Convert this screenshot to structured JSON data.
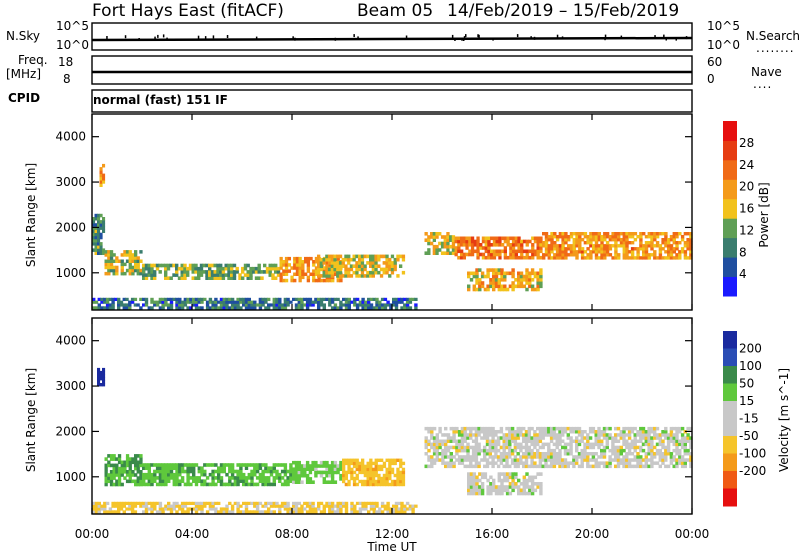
{
  "header": {
    "station": "Fort Hays East (fitACF)",
    "beam": "Beam 05",
    "date_range": "14/Feb/2019 – 15/Feb/2019"
  },
  "strips": {
    "nsky_label": "N.Sky",
    "nsearch_label": "N.Search",
    "noise_ticks": [
      "10^5",
      "10^0"
    ],
    "freq_label_top": "Freq.",
    "freq_label_bottom": "[MHz]",
    "freq_ticks": [
      "18",
      "8"
    ],
    "nave_label": "Nave",
    "nave_ticks": [
      "60",
      "0"
    ],
    "cpid_label": "CPID",
    "cpid_text": "normal (fast) 151 IF"
  },
  "time_axis": {
    "label": "Time UT",
    "ticks": [
      "00:00",
      "04:00",
      "08:00",
      "12:00",
      "16:00",
      "20:00",
      "00:00"
    ]
  },
  "colors": {
    "power_scale": [
      "#1a1aff",
      "#1f4fa0",
      "#3a7d6e",
      "#5f9f55",
      "#f2c21c",
      "#f49a1a",
      "#f06a16",
      "#e63c12",
      "#e60f0f"
    ],
    "velocity_scale": [
      "#e60f0f",
      "#f05a14",
      "#f49a1a",
      "#f5c42b",
      "#c8c8c8",
      "#c8c8c8",
      "#5fc83c",
      "#3a8a4a",
      "#2a4db5",
      "#1a2a9f"
    ]
  },
  "chart_data": [
    {
      "type": "heatmap",
      "title": "",
      "xlabel": "",
      "ylabel": "Slant Range [km]",
      "x_unit": "hours UT",
      "xlim": [
        0,
        24
      ],
      "ylim": [
        180,
        4500
      ],
      "yticks": [
        1000,
        2000,
        3000,
        4000
      ],
      "colorbar": {
        "label": "Power [dB]",
        "ticks": [
          4,
          8,
          12,
          16,
          20,
          24,
          28
        ],
        "range": [
          0,
          32
        ]
      },
      "features": [
        {
          "t0": 0.0,
          "t1": 0.5,
          "r0": 1400,
          "r1": 2300,
          "value": 10
        },
        {
          "t0": 0.3,
          "t1": 0.5,
          "r0": 2900,
          "r1": 3400,
          "value": 22
        },
        {
          "t0": 0.5,
          "t1": 2.0,
          "r0": 950,
          "r1": 1500,
          "value": 14
        },
        {
          "t0": 2.0,
          "t1": 7.5,
          "r0": 850,
          "r1": 1200,
          "value": 12
        },
        {
          "t0": 7.5,
          "t1": 10.0,
          "r0": 800,
          "r1": 1350,
          "value": 20
        },
        {
          "t0": 9.0,
          "t1": 12.5,
          "r0": 900,
          "r1": 1400,
          "value": 16
        },
        {
          "t0": 13.3,
          "t1": 14.5,
          "r0": 1400,
          "r1": 1900,
          "value": 16
        },
        {
          "t0": 14.5,
          "t1": 18.0,
          "r0": 1300,
          "r1": 1800,
          "value": 22
        },
        {
          "t0": 15.0,
          "t1": 18.0,
          "r0": 600,
          "r1": 1100,
          "value": 18
        },
        {
          "t0": 18.0,
          "t1": 24.0,
          "r0": 1300,
          "r1": 1900,
          "value": 20
        },
        {
          "t0": 0.0,
          "t1": 13.0,
          "r0": 200,
          "r1": 450,
          "value": 8
        }
      ]
    },
    {
      "type": "heatmap",
      "title": "",
      "xlabel": "Time UT",
      "ylabel": "Slant Range [km]",
      "x_unit": "hours UT",
      "xlim": [
        0,
        24
      ],
      "ylim": [
        180,
        4500
      ],
      "yticks": [
        1000,
        2000,
        3000,
        4000
      ],
      "colorbar": {
        "label": "Velocity [m s^-1]",
        "ticks": [
          200,
          100,
          50,
          15,
          -15,
          -50,
          -100,
          -200
        ],
        "range": [
          -250,
          250
        ]
      },
      "features": [
        {
          "t0": 0.2,
          "t1": 0.5,
          "r0": 3000,
          "r1": 3400,
          "value": 220
        },
        {
          "t0": 0.5,
          "t1": 2.0,
          "r0": 800,
          "r1": 1500,
          "value": 50
        },
        {
          "t0": 2.0,
          "t1": 8.0,
          "r0": 800,
          "r1": 1300,
          "value": 40
        },
        {
          "t0": 8.0,
          "t1": 10.0,
          "r0": 850,
          "r1": 1350,
          "value": 30
        },
        {
          "t0": 10.0,
          "t1": 12.5,
          "r0": 800,
          "r1": 1400,
          "value": -40
        },
        {
          "t0": 13.3,
          "t1": 24.0,
          "r0": 1200,
          "r1": 2100,
          "value": 0
        },
        {
          "t0": 15.0,
          "t1": 18.0,
          "r0": 600,
          "r1": 1100,
          "value": 0
        },
        {
          "t0": 0.0,
          "t1": 13.0,
          "r0": 200,
          "r1": 450,
          "value": -20
        }
      ]
    }
  ]
}
